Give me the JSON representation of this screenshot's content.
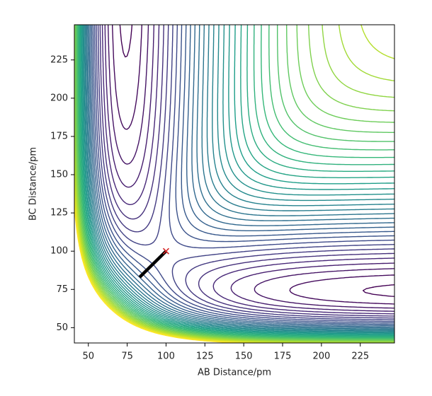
{
  "chart_data": {
    "type": "contour",
    "xlabel": "AB Distance/pm",
    "ylabel": "BC Distance/pm",
    "xlim": [
      41,
      247
    ],
    "ylim": [
      40,
      248
    ],
    "xticks": [
      50,
      75,
      100,
      125,
      150,
      175,
      200,
      225
    ],
    "yticks": [
      50,
      75,
      100,
      125,
      150,
      175,
      200,
      225
    ],
    "colormap": "viridis",
    "surface": {
      "model": "leps",
      "D": 432,
      "a": 0.0194,
      "r0": 74,
      "S": 0.18
    },
    "levels": [
      -360,
      -350,
      -340,
      -330,
      -320,
      -310,
      -300,
      -290,
      -280,
      -270,
      -260,
      -250,
      -240,
      -230,
      -220,
      -210,
      -200,
      -190,
      -180,
      -170,
      -160,
      -150,
      -140,
      -130,
      -120,
      -110,
      -100,
      -90,
      -80,
      -70,
      -60,
      -50,
      -40,
      -30,
      -20,
      -10,
      0
    ],
    "trajectory": {
      "x": [
        83,
        100
      ],
      "y": [
        83,
        100
      ],
      "color": "#000000"
    },
    "start_marker": {
      "x": 100,
      "y": 100,
      "color": "#d62728"
    }
  }
}
